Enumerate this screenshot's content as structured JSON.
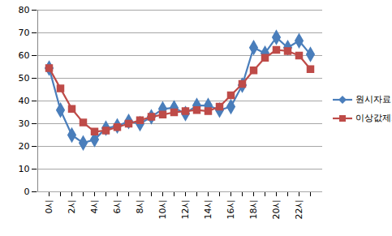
{
  "chart_data": {
    "type": "line",
    "categories": [
      "0시",
      null,
      "2시",
      null,
      "4시",
      null,
      "6시",
      null,
      "8시",
      null,
      "10시",
      null,
      "12시",
      null,
      "14시",
      null,
      "16시",
      null,
      "18시",
      null,
      "20시",
      null,
      "22시",
      null
    ],
    "series": [
      {
        "name": "원시자료",
        "color": "#4a7ebb",
        "marker": "diamond",
        "values": [
          54.5,
          36,
          25,
          21.5,
          23,
          28,
          29,
          31,
          30,
          33,
          36.5,
          37,
          34.5,
          38,
          38,
          36,
          37.5,
          47,
          63.5,
          61,
          68,
          63.5,
          66.5,
          60.5
        ]
      },
      {
        "name": "이상값제거",
        "color": "#be4b48",
        "marker": "square",
        "values": [
          54.5,
          45.5,
          36.5,
          30.5,
          26.5,
          27,
          28.5,
          30,
          31.5,
          33,
          34,
          35,
          35.5,
          36,
          35.5,
          37.5,
          42.5,
          47.5,
          53.5,
          59,
          62.5,
          62,
          60,
          54
        ]
      }
    ],
    "ylim": [
      0,
      80
    ],
    "yticks": [
      0,
      10,
      20,
      30,
      40,
      50,
      60,
      70,
      80
    ],
    "grid": true,
    "legend": "right"
  }
}
